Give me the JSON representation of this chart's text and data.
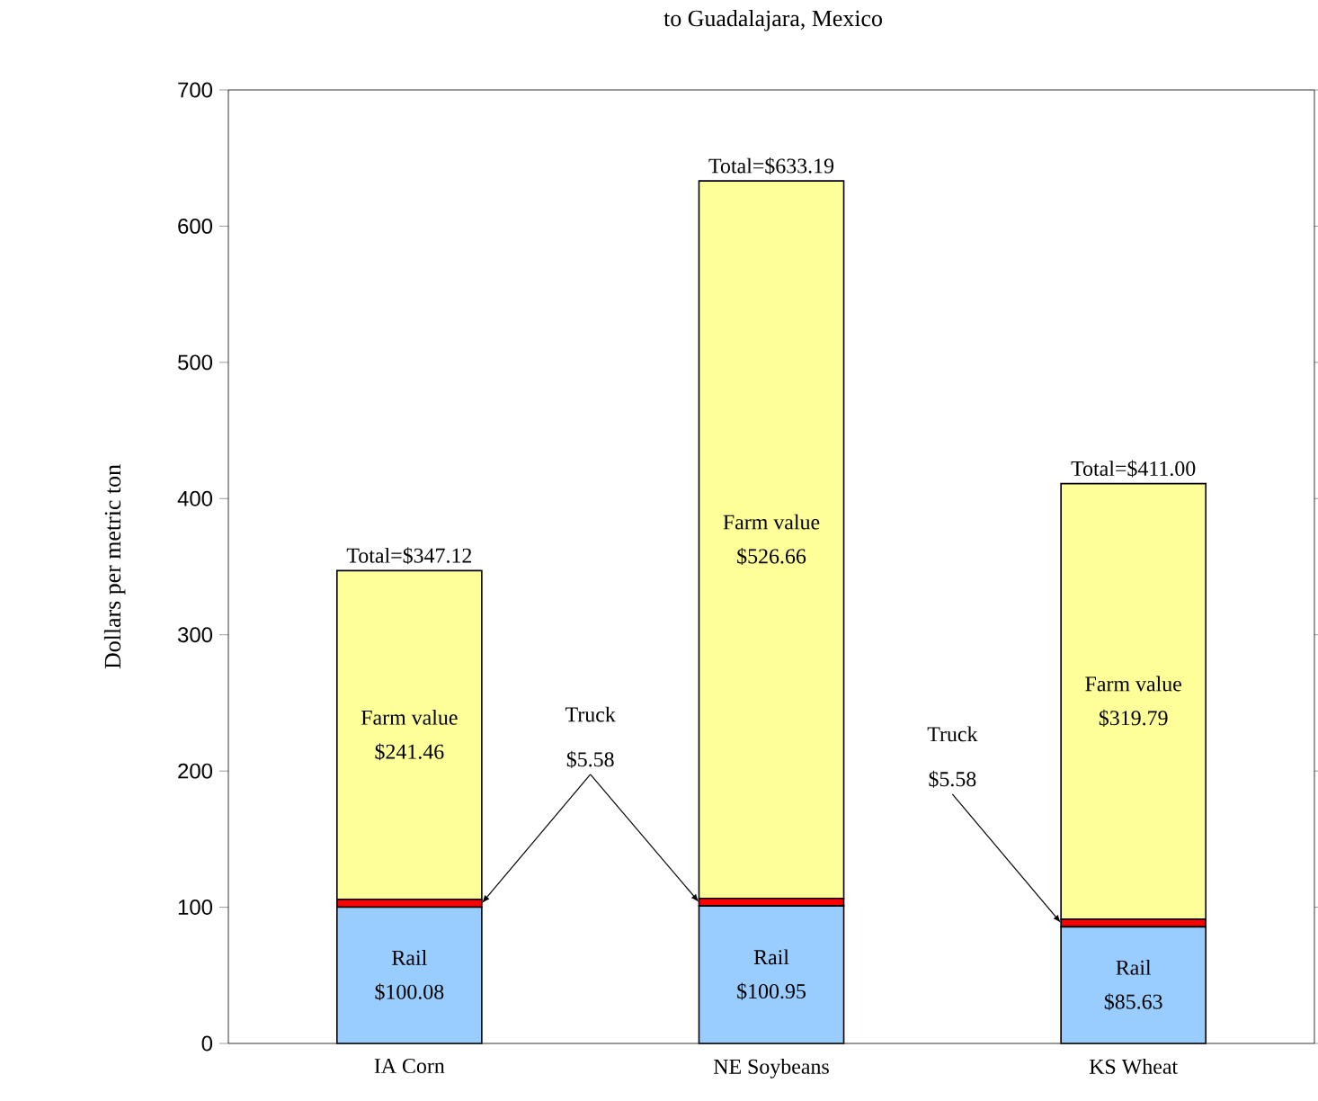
{
  "chart_data": {
    "type": "bar",
    "stacked": true,
    "title": "to Guadalajara,  Mexico",
    "ylabel": "Dollars  per metric ton",
    "categories": [
      "IA Corn",
      "NE Soybeans",
      "KS Wheat"
    ],
    "series": [
      {
        "name": "Rail",
        "color": "#99ccff",
        "values": [
          100.08,
          100.95,
          85.63
        ],
        "value_labels": [
          "$100.08",
          "$100.95",
          "$85.63"
        ]
      },
      {
        "color": "#ff0000",
        "values": [
          5.58,
          5.58,
          5.58
        ],
        "value_labels": [
          "$5.58",
          null,
          "$5.58"
        ]
      },
      {
        "name": "Farm value",
        "color": "#ffff99",
        "values": [
          241.46,
          526.66,
          319.79
        ],
        "value_labels": [
          "$241.46",
          "$526.66",
          "$319.79"
        ]
      }
    ],
    "annotations": [
      "Truck",
      "Truck"
    ],
    "totals": [
      "Total=$347.12",
      "Total=$633.19",
      "Total=$411.00"
    ],
    "ylim": [
      0,
      700
    ],
    "yticks": [
      0,
      100,
      200,
      300,
      400,
      500,
      600,
      700
    ]
  }
}
